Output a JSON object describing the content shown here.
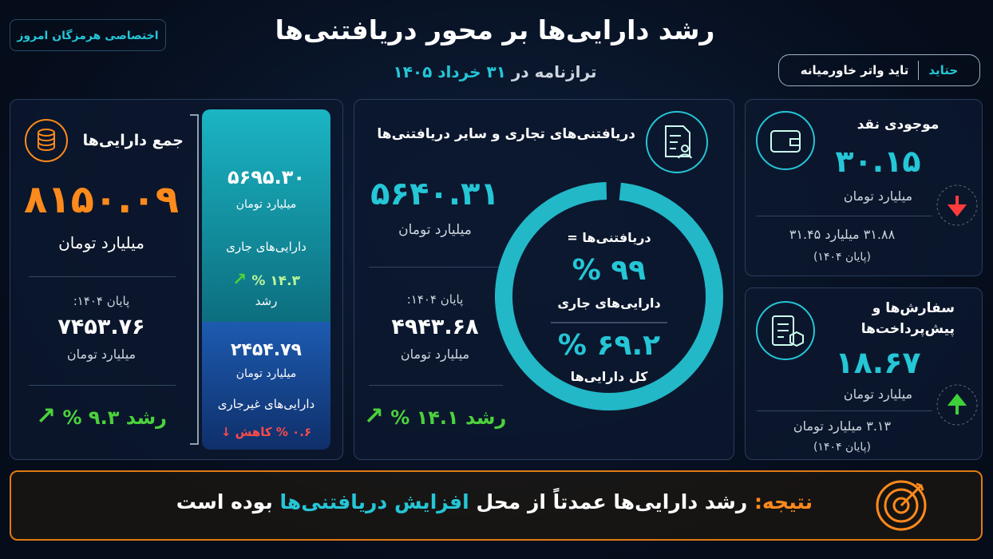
{
  "header": {
    "title": "رشد دارایی‌ها بر محور دریافتنی‌ها",
    "subtitle_text": "ترازنامه در",
    "subtitle_date": "۳۱ خرداد ۱۴۰۵",
    "badge": "اختصاصی هرمزگان امروز",
    "brand": "حتاید",
    "company": "تاید واتر خاورمیانه"
  },
  "total_assets": {
    "title": "جمع دارایی‌ها",
    "value": "۸۱۵۰.۰۹",
    "unit": "میلیارد تومان",
    "prev_label": "پایان ۱۴۰۴:",
    "prev_value": "۷۴۵۳.۷۶",
    "prev_unit": "میلیارد تومان",
    "growth": "رشد ۹.۳ %"
  },
  "current_assets": {
    "value": "۵۶۹۵.۳۰",
    "unit": "میلیارد تومان",
    "label": "دارایی‌های جاری",
    "growth": "۱۴.۳ %",
    "growth_label": "رشد"
  },
  "noncurrent_assets": {
    "value": "۲۴۵۴.۷۹",
    "unit": "میلیارد تومان",
    "label": "دارایی‌های غیرجاری",
    "change": "۰.۶ % کاهش"
  },
  "receivables": {
    "title": "دریافتنی‌های تجاری و سایر دریافتنی‌ها",
    "value": "۵۶۴۰.۳۱",
    "unit": "میلیارد تومان",
    "prev_label": "پایان ۱۴۰۴:",
    "prev_value": "۴۹۴۳.۶۸",
    "prev_unit": "میلیارد تومان",
    "growth": "رشد ۱۴.۱ %",
    "ring": {
      "heading": "دریافتنی‌ها =",
      "share_current": "۹۹ %",
      "share_current_label": "دارایی‌های جاری",
      "share_total": "۶۹.۲ %",
      "share_total_label": "کل دارایی‌ها"
    }
  },
  "cash": {
    "title": "موجودی نقد",
    "value": "۳۰.۱۵",
    "unit": "میلیارد تومان",
    "prev": "۳۱.۸۸ میلیارد ۳۱.۴۵",
    "prev_note": "(پایان ۱۴۰۴)"
  },
  "prepayments": {
    "title_line1": "سفارش‌ها و",
    "title_line2": "پیش‌پرداخت‌ها",
    "value": "۱۸.۶۷",
    "unit": "میلیارد تومان",
    "prev": "۳.۱۳ میلیارد تومان",
    "prev_note": "(پایان ۱۴۰۴)"
  },
  "conclusion": {
    "label": "نتیجه:",
    "text_a": "رشد دارایی‌ها عمدتاً از محل",
    "highlight": "افزایش دریافتنی‌ها",
    "text_b": "بوده است"
  }
}
